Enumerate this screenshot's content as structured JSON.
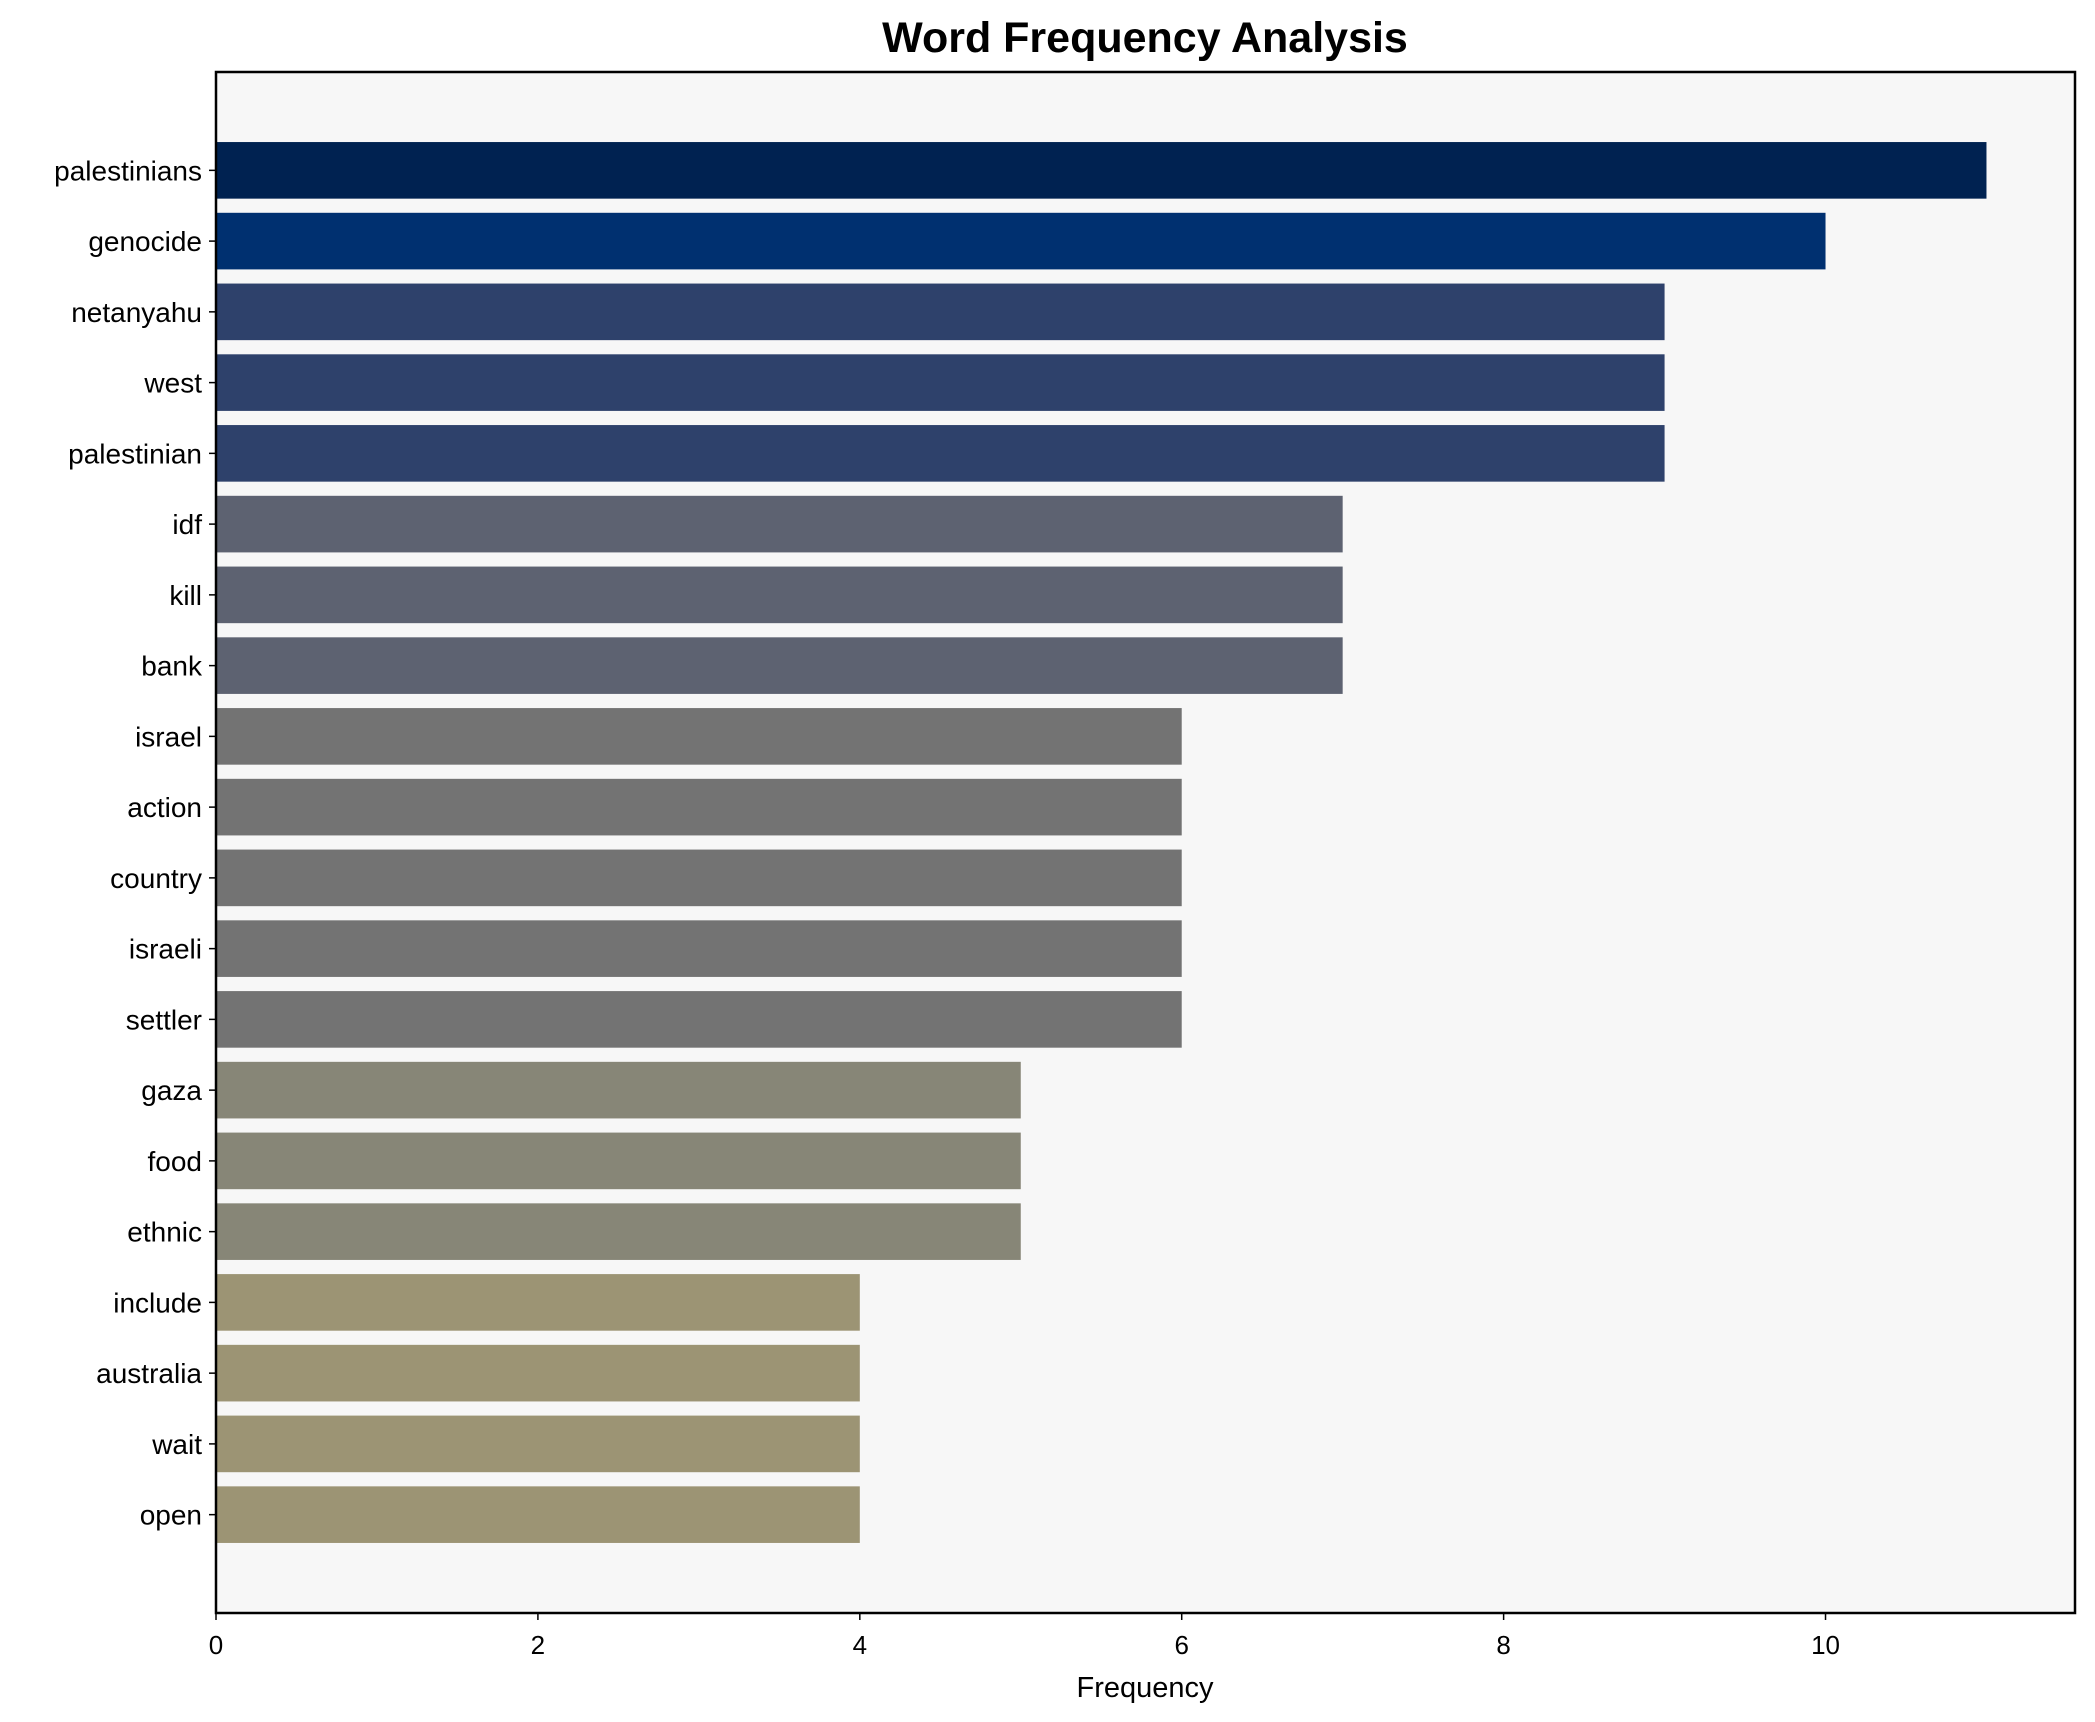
{
  "chart_data": {
    "type": "bar",
    "orientation": "horizontal",
    "title": "Word Frequency Analysis",
    "xlabel": "Frequency",
    "ylabel": "",
    "xlim": [
      0,
      11.55
    ],
    "xticks": [
      0,
      2,
      4,
      6,
      8,
      10
    ],
    "grid": false,
    "background": "#f7f7f7",
    "categories": [
      "palestinians",
      "genocide",
      "netanyahu",
      "west",
      "palestinian",
      "idf",
      "kill",
      "bank",
      "israel",
      "action",
      "country",
      "israeli",
      "settler",
      "gaza",
      "food",
      "ethnic",
      "include",
      "australia",
      "wait",
      "open"
    ],
    "values": [
      11,
      10,
      9,
      9,
      9,
      7,
      7,
      7,
      6,
      6,
      6,
      6,
      6,
      5,
      5,
      5,
      4,
      4,
      4,
      4
    ],
    "colors": [
      "#002251",
      "#003070",
      "#2e416b",
      "#2e416b",
      "#2e416b",
      "#5d6271",
      "#5d6271",
      "#5d6271",
      "#737373",
      "#737373",
      "#737373",
      "#737373",
      "#737373",
      "#878677",
      "#878677",
      "#878677",
      "#9c9474",
      "#9c9474",
      "#9c9474",
      "#9c9474"
    ]
  }
}
